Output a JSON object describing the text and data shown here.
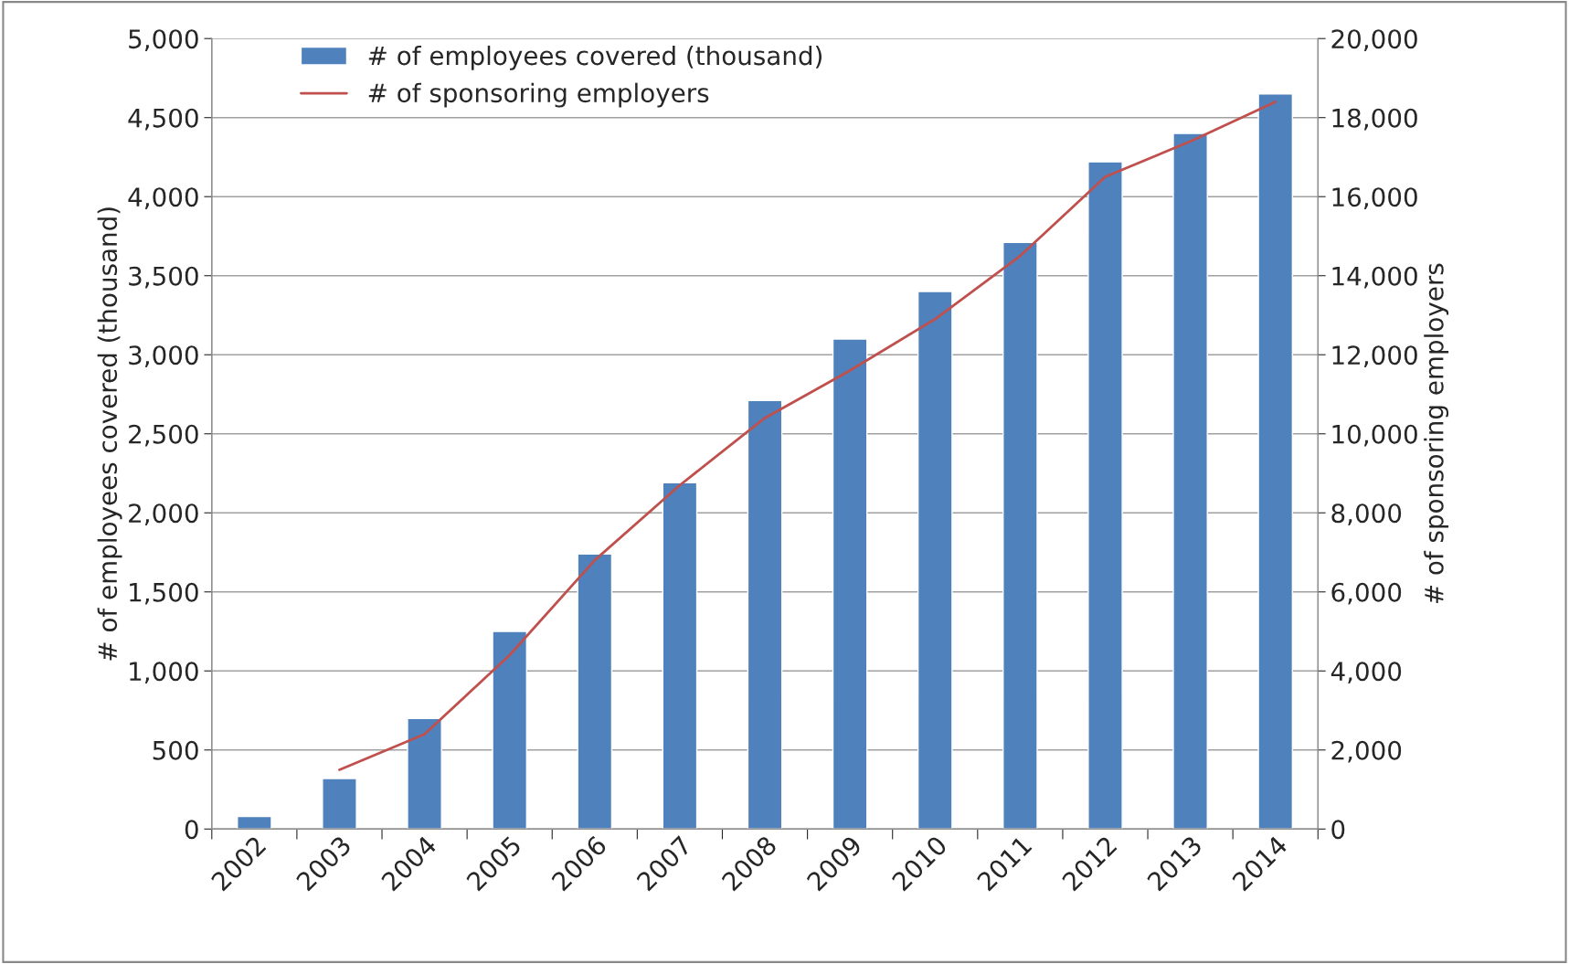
{
  "chart_data": {
    "type": "bar",
    "categories": [
      "2002",
      "2003",
      "2004",
      "2005",
      "2006",
      "2007",
      "2008",
      "2009",
      "2010",
      "2011",
      "2012",
      "2013",
      "2014"
    ],
    "series": [
      {
        "name": "# of employees covered (thousand)",
        "color": "#4f81bd",
        "values": [
          80,
          320,
          700,
          1250,
          1740,
          2190,
          2710,
          3100,
          3400,
          3710,
          4220,
          4400,
          4650
        ]
      },
      {
        "name": "# of sponsoring employers",
        "type": "line",
        "axis": "y2",
        "color": "#c0504d",
        "values": [
          null,
          1500,
          2400,
          4400,
          6800,
          8700,
          10400,
          11600,
          12900,
          14500,
          16500,
          17400,
          18400
        ]
      }
    ],
    "ylabel": "# of employees covered (thousand)",
    "y2label": "# of sponsoring employers",
    "ylim": [
      0,
      5000
    ],
    "yticks": [
      {
        "value": 0,
        "label": "0"
      },
      {
        "value": 500,
        "label": "500"
      },
      {
        "value": 1000,
        "label": "1,000"
      },
      {
        "value": 1500,
        "label": "1,500"
      },
      {
        "value": 2000,
        "label": "2,000"
      },
      {
        "value": 2500,
        "label": "2,500"
      },
      {
        "value": 3000,
        "label": "3,000"
      },
      {
        "value": 3500,
        "label": "3,500"
      },
      {
        "value": 4000,
        "label": "4,000"
      },
      {
        "value": 4500,
        "label": "4,500"
      },
      {
        "value": 5000,
        "label": "5,000"
      }
    ],
    "y2lim": [
      0,
      20000
    ],
    "y2ticks": [
      {
        "value": 0,
        "label": "0"
      },
      {
        "value": 2000,
        "label": "2,000"
      },
      {
        "value": 4000,
        "label": "4,000"
      },
      {
        "value": 6000,
        "label": "6,000"
      },
      {
        "value": 8000,
        "label": "8,000"
      },
      {
        "value": 10000,
        "label": "10,000"
      },
      {
        "value": 12000,
        "label": "12,000"
      },
      {
        "value": 14000,
        "label": "14,000"
      },
      {
        "value": 16000,
        "label": "16,000"
      },
      {
        "value": 18000,
        "label": "18,000"
      },
      {
        "value": 20000,
        "label": "20,000"
      }
    ],
    "grid": "y",
    "legend": "top left",
    "marker": "none",
    "line_style": "solid"
  }
}
